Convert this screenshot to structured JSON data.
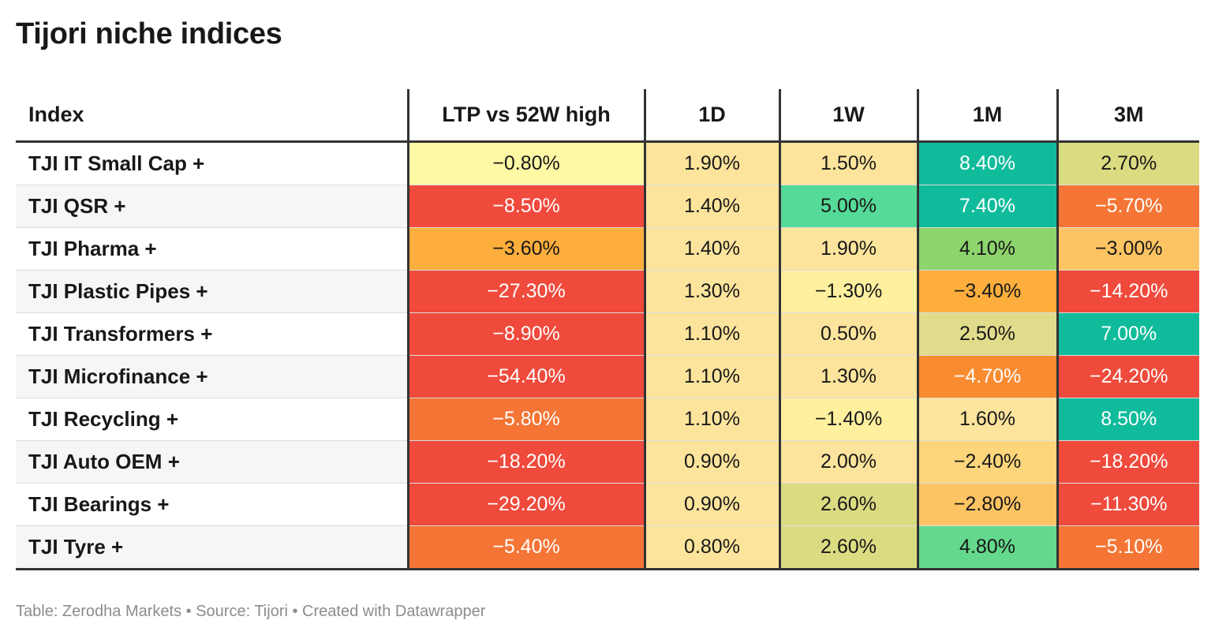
{
  "title": "Tijori niche indices",
  "footer": "Table: Zerodha Markets • Source: Tijori • Created with Datawrapper",
  "colors": {
    "strong_red": "#ef4a3c",
    "orange_red": "#f47535",
    "orange": "#f98b30",
    "light_orange": "#fdae3c",
    "amber": "#fec463",
    "light_amber": "#fdd67b",
    "pale_amber": "#fde49c",
    "pale_yellow": "#fff0a0",
    "yellow": "#fff8a4",
    "olive": "#dbdb82",
    "light_olive": "#e1dc8c",
    "green": "#8dd46d",
    "mint": "#56da98",
    "light_green": "#64d88c",
    "teal": "#10bb9b"
  },
  "chart_data": {
    "type": "table",
    "title": "Tijori niche indices",
    "columns": [
      "Index",
      "LTP vs 52W high",
      "1D",
      "1W",
      "1M",
      "3M"
    ],
    "rows": [
      {
        "index": "TJI IT Small Cap +",
        "ltp_vs_52w": "−0.80%",
        "d1": "1.90%",
        "w1": "1.50%",
        "m1": "8.40%",
        "m3": "2.70%",
        "bg": [
          "#fff8a4",
          "#fde49c",
          "#fde49c",
          "#10bb9b",
          "#dbdb82"
        ]
      },
      {
        "index": "TJI QSR +",
        "ltp_vs_52w": "−8.50%",
        "d1": "1.40%",
        "w1": "5.00%",
        "m1": "7.40%",
        "m3": "−5.70%",
        "bg": [
          "#ef4a3c",
          "#fde49c",
          "#56da98",
          "#10bb9b",
          "#f47535"
        ]
      },
      {
        "index": "TJI Pharma +",
        "ltp_vs_52w": "−3.60%",
        "d1": "1.40%",
        "w1": "1.90%",
        "m1": "4.10%",
        "m3": "−3.00%",
        "bg": [
          "#fdae3c",
          "#fde49c",
          "#fde49c",
          "#8dd46d",
          "#fec463"
        ]
      },
      {
        "index": "TJI Plastic Pipes +",
        "ltp_vs_52w": "−27.30%",
        "d1": "1.30%",
        "w1": "−1.30%",
        "m1": "−3.40%",
        "m3": "−14.20%",
        "bg": [
          "#ef4a3c",
          "#fde49c",
          "#fff0a0",
          "#fdae3c",
          "#ef4a3c"
        ]
      },
      {
        "index": "TJI Transformers +",
        "ltp_vs_52w": "−8.90%",
        "d1": "1.10%",
        "w1": "0.50%",
        "m1": "2.50%",
        "m3": "7.00%",
        "bg": [
          "#ef4a3c",
          "#fde49c",
          "#fde49c",
          "#e1dc8c",
          "#10bb9b"
        ]
      },
      {
        "index": "TJI Microfinance +",
        "ltp_vs_52w": "−54.40%",
        "d1": "1.10%",
        "w1": "1.30%",
        "m1": "−4.70%",
        "m3": "−24.20%",
        "bg": [
          "#ef4a3c",
          "#fde49c",
          "#fde49c",
          "#f98b30",
          "#ef4a3c"
        ]
      },
      {
        "index": "TJI Recycling +",
        "ltp_vs_52w": "−5.80%",
        "d1": "1.10%",
        "w1": "−1.40%",
        "m1": "1.60%",
        "m3": "8.50%",
        "bg": [
          "#f47535",
          "#fde49c",
          "#fff0a0",
          "#fde49c",
          "#10bb9b"
        ]
      },
      {
        "index": "TJI Auto OEM +",
        "ltp_vs_52w": "−18.20%",
        "d1": "0.90%",
        "w1": "2.00%",
        "m1": "−2.40%",
        "m3": "−18.20%",
        "bg": [
          "#ef4a3c",
          "#fde49c",
          "#fde49c",
          "#fdd67b",
          "#ef4a3c"
        ]
      },
      {
        "index": "TJI Bearings +",
        "ltp_vs_52w": "−29.20%",
        "d1": "0.90%",
        "w1": "2.60%",
        "m1": "−2.80%",
        "m3": "−11.30%",
        "bg": [
          "#ef4a3c",
          "#fde49c",
          "#dbdb82",
          "#fec463",
          "#ef4a3c"
        ]
      },
      {
        "index": "TJI Tyre +",
        "ltp_vs_52w": "−5.40%",
        "d1": "0.80%",
        "w1": "2.60%",
        "m1": "4.80%",
        "m3": "−5.10%",
        "bg": [
          "#f47535",
          "#fde49c",
          "#dbdb82",
          "#64d88c",
          "#f47535"
        ]
      }
    ]
  }
}
